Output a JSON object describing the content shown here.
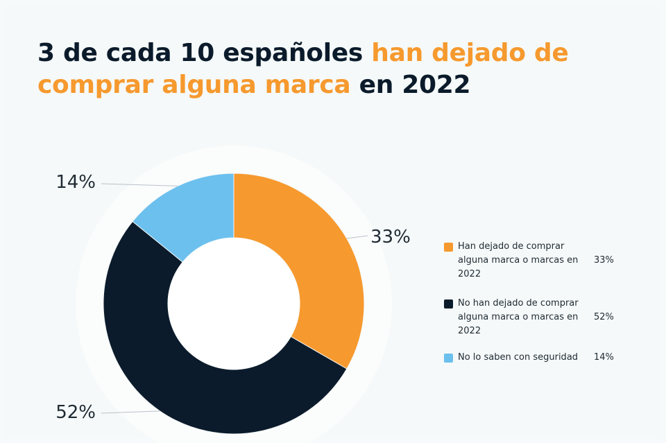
{
  "title": {
    "part1": "3 de cada 10 españoles ",
    "part2": "han dejado de comprar alguna marca",
    "part3": " en 2022"
  },
  "colors": {
    "highlight": "#f6992e",
    "dark": "#0b1b2b"
  },
  "chart_data": {
    "type": "pie",
    "donut": true,
    "title": "3 de cada 10 españoles han dejado de comprar alguna marca en 2022",
    "legend_position": "right",
    "series": [
      {
        "name": "Han dejado de comprar alguna marca o marcas en 2022",
        "value": 33,
        "label": "33%",
        "color": "#f6992e"
      },
      {
        "name": "No han dejado de comprar alguna marca o marcas en 2022",
        "value": 52,
        "label": "52%",
        "color": "#0b1b2b"
      },
      {
        "name": "No lo saben con seguridad",
        "value": 14,
        "label": "14%",
        "color": "#6cc0ee"
      }
    ]
  }
}
